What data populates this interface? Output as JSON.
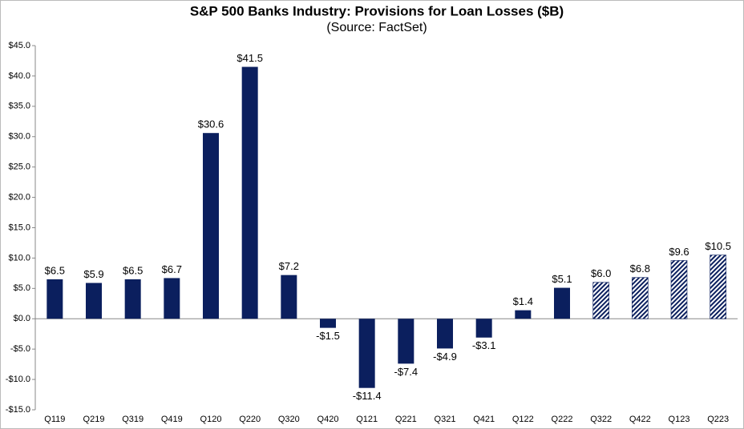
{
  "chart_data": {
    "type": "bar",
    "title": "S&P 500 Banks Industry: Provisions for Loan Losses ($B)",
    "subtitle": "(Source: FactSet)",
    "categories": [
      "Q119",
      "Q219",
      "Q319",
      "Q419",
      "Q120",
      "Q220",
      "Q320",
      "Q420",
      "Q121",
      "Q221",
      "Q321",
      "Q421",
      "Q122",
      "Q222",
      "Q322",
      "Q422",
      "Q123",
      "Q223"
    ],
    "values": [
      6.5,
      5.9,
      6.5,
      6.7,
      30.6,
      41.5,
      7.2,
      -1.5,
      -11.4,
      -7.4,
      -4.9,
      -3.1,
      1.4,
      5.1,
      6.0,
      6.8,
      9.6,
      10.5
    ],
    "value_labels": [
      "$6.5",
      "$5.9",
      "$6.5",
      "$6.7",
      "$30.6",
      "$41.5",
      "$7.2",
      "-$1.5",
      "-$11.4",
      "-$7.4",
      "-$4.9",
      "-$3.1",
      "$1.4",
      "$5.1",
      "$6.0",
      "$6.8",
      "$9.6",
      "$10.5"
    ],
    "hatched": [
      false,
      false,
      false,
      false,
      false,
      false,
      false,
      false,
      false,
      false,
      false,
      false,
      false,
      false,
      true,
      true,
      true,
      true
    ],
    "color": "#0b1f5e",
    "ylim": [
      -15,
      45
    ],
    "yticks": [
      {
        "value": -15,
        "label": "-$15.0"
      },
      {
        "value": -10,
        "label": "-$10.0"
      },
      {
        "value": -5,
        "label": "-$5.0"
      },
      {
        "value": 0,
        "label": "$0.0"
      },
      {
        "value": 5,
        "label": "$5.0"
      },
      {
        "value": 10,
        "label": "$10.0"
      },
      {
        "value": 15,
        "label": "$15.0"
      },
      {
        "value": 20,
        "label": "$20.0"
      },
      {
        "value": 25,
        "label": "$25.0"
      },
      {
        "value": 30,
        "label": "$30.0"
      },
      {
        "value": 35,
        "label": "$35.0"
      },
      {
        "value": 40,
        "label": "$40.0"
      },
      {
        "value": 45,
        "label": "$45.0"
      }
    ],
    "grid": false
  }
}
